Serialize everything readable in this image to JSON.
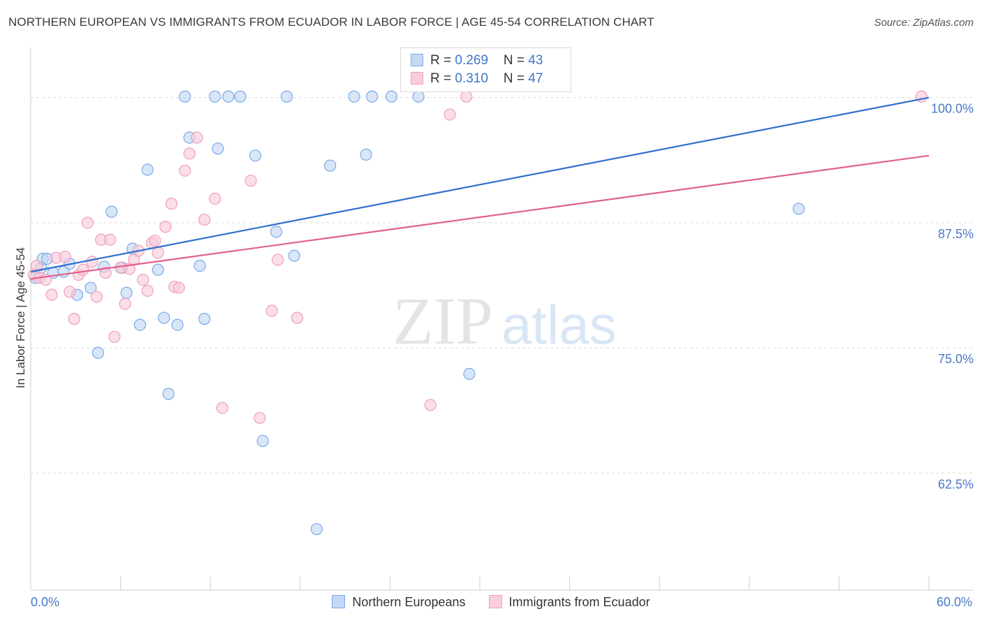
{
  "title": "NORTHERN EUROPEAN VS IMMIGRANTS FROM ECUADOR IN LABOR FORCE | AGE 45-54 CORRELATION CHART",
  "source": "Source: ZipAtlas.com",
  "watermark": {
    "zip": "ZIP",
    "atlas": "atlas"
  },
  "legend_stats": [
    {
      "r_label": "R = ",
      "r_value": "0.269",
      "n_label": "N = ",
      "n_value": "43"
    },
    {
      "r_label": "R = ",
      "r_value": "0.310",
      "n_label": "N = ",
      "n_value": "47"
    }
  ],
  "chart_data": {
    "type": "scatter",
    "ylabel": "In Labor Force | Age 45-54",
    "xlim": [
      0,
      60
    ],
    "ylim": [
      50.8,
      105
    ],
    "x_tick_labels": {
      "left": "0.0%",
      "right": "60.0%"
    },
    "y_ticks": [
      {
        "value": 62.5,
        "label": "62.5%"
      },
      {
        "value": 75.0,
        "label": "75.0%"
      },
      {
        "value": 87.5,
        "label": "87.5%"
      },
      {
        "value": 100.0,
        "label": "100.0%"
      }
    ],
    "grid": "horizontal-dashed",
    "legend": "bottom-center",
    "series": [
      {
        "name": "Northern Europeans",
        "color": "#7aaae8",
        "fill": "#c5d9f5",
        "line_color": "#2f6fcd",
        "trend": {
          "x": [
            0,
            60
          ],
          "y": [
            82.6,
            100.0
          ]
        },
        "points": [
          [
            0.3,
            82.0
          ],
          [
            0.7,
            83.0
          ],
          [
            0.8,
            83.9
          ],
          [
            1.1,
            83.9
          ],
          [
            1.5,
            82.5
          ],
          [
            2.2,
            82.6
          ],
          [
            2.6,
            83.4
          ],
          [
            3.1,
            80.3
          ],
          [
            4.0,
            81.0
          ],
          [
            4.5,
            74.5
          ],
          [
            4.9,
            83.1
          ],
          [
            5.4,
            88.6
          ],
          [
            6.1,
            83.0
          ],
          [
            6.4,
            80.5
          ],
          [
            6.8,
            84.9
          ],
          [
            7.3,
            77.3
          ],
          [
            7.8,
            92.8
          ],
          [
            8.5,
            82.8
          ],
          [
            8.9,
            78.0
          ],
          [
            9.2,
            70.4
          ],
          [
            9.8,
            77.3
          ],
          [
            10.3,
            100.1
          ],
          [
            10.6,
            96.0
          ],
          [
            11.3,
            83.2
          ],
          [
            11.6,
            77.9
          ],
          [
            12.3,
            100.1
          ],
          [
            12.5,
            94.9
          ],
          [
            13.2,
            100.1
          ],
          [
            14.0,
            100.1
          ],
          [
            15.0,
            94.2
          ],
          [
            15.5,
            65.7
          ],
          [
            16.4,
            86.6
          ],
          [
            17.1,
            100.1
          ],
          [
            17.6,
            84.2
          ],
          [
            19.1,
            56.9
          ],
          [
            20.0,
            93.2
          ],
          [
            21.6,
            100.1
          ],
          [
            22.4,
            94.3
          ],
          [
            22.8,
            100.1
          ],
          [
            24.1,
            100.1
          ],
          [
            25.9,
            100.1
          ],
          [
            29.3,
            72.4
          ],
          [
            51.3,
            88.9
          ]
        ]
      },
      {
        "name": "Immigrants from Ecuador",
        "color": "#f0a0b8",
        "fill": "#f9cdda",
        "line_color": "#e0608e",
        "trend": {
          "x": [
            0,
            60
          ],
          "y": [
            81.9,
            94.2
          ]
        },
        "points": [
          [
            0.2,
            82.3
          ],
          [
            0.4,
            83.2
          ],
          [
            0.6,
            82.0
          ],
          [
            1.0,
            81.8
          ],
          [
            1.4,
            80.3
          ],
          [
            1.7,
            84.0
          ],
          [
            2.3,
            84.1
          ],
          [
            2.6,
            80.6
          ],
          [
            2.9,
            77.9
          ],
          [
            3.2,
            82.3
          ],
          [
            3.5,
            82.8
          ],
          [
            3.8,
            87.5
          ],
          [
            4.1,
            83.6
          ],
          [
            4.4,
            80.1
          ],
          [
            4.7,
            85.8
          ],
          [
            5.0,
            82.5
          ],
          [
            5.3,
            85.8
          ],
          [
            5.6,
            76.1
          ],
          [
            6.0,
            83.0
          ],
          [
            6.3,
            79.4
          ],
          [
            6.6,
            82.9
          ],
          [
            6.9,
            83.8
          ],
          [
            7.2,
            84.7
          ],
          [
            7.5,
            81.8
          ],
          [
            7.8,
            80.7
          ],
          [
            8.1,
            85.5
          ],
          [
            8.3,
            85.7
          ],
          [
            8.5,
            84.5
          ],
          [
            9.0,
            87.1
          ],
          [
            9.4,
            89.4
          ],
          [
            9.6,
            81.1
          ],
          [
            9.9,
            81.0
          ],
          [
            10.3,
            92.7
          ],
          [
            10.6,
            94.4
          ],
          [
            11.1,
            96.0
          ],
          [
            11.6,
            87.8
          ],
          [
            12.3,
            89.9
          ],
          [
            12.8,
            69.0
          ],
          [
            14.7,
            91.7
          ],
          [
            15.3,
            68.0
          ],
          [
            16.1,
            78.7
          ],
          [
            16.5,
            83.8
          ],
          [
            17.8,
            78.0
          ],
          [
            26.7,
            69.3
          ],
          [
            28.0,
            98.3
          ],
          [
            29.1,
            100.1
          ],
          [
            59.5,
            100.1
          ]
        ]
      }
    ]
  }
}
